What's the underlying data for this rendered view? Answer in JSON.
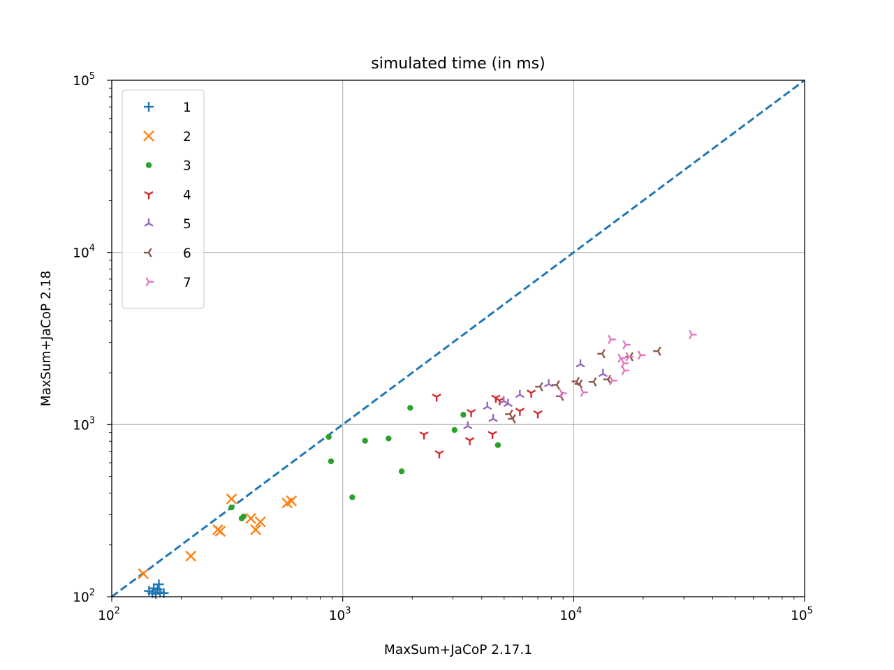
{
  "chart_data": {
    "type": "scatter",
    "title": "simulated time (in ms)",
    "xlabel": "MaxSum+JaCoP 2.17.1",
    "ylabel": "MaxSum+JaCoP 2.18",
    "xscale": "log",
    "yscale": "log",
    "xlim": [
      100,
      100000
    ],
    "ylim": [
      100,
      100000
    ],
    "grid": true,
    "legend_position": "top-left",
    "ticks": [
      {
        "base": "10",
        "exp": "2",
        "value": 100
      },
      {
        "base": "10",
        "exp": "3",
        "value": 1000
      },
      {
        "base": "10",
        "exp": "4",
        "value": 10000
      },
      {
        "base": "10",
        "exp": "5",
        "value": 100000
      }
    ],
    "reference_line": {
      "style": "dashed",
      "color": "#1f77b4",
      "from": [
        100,
        100
      ],
      "to": [
        100000,
        100000
      ]
    },
    "series": [
      {
        "name": "1",
        "marker": "plus",
        "color": "#1f77b4",
        "points": [
          [
            145,
            108
          ],
          [
            150,
            105
          ],
          [
            152,
            112
          ],
          [
            155,
            104
          ],
          [
            158,
            110
          ],
          [
            160,
            118
          ],
          [
            162,
            106
          ],
          [
            168,
            105
          ]
        ]
      },
      {
        "name": "2",
        "marker": "x",
        "color": "#ff7f0e",
        "points": [
          [
            137,
            136
          ],
          [
            220,
            172
          ],
          [
            288,
            245
          ],
          [
            295,
            240
          ],
          [
            330,
            370
          ],
          [
            400,
            285
          ],
          [
            420,
            245
          ],
          [
            440,
            272
          ],
          [
            575,
            350
          ],
          [
            600,
            360
          ]
        ]
      },
      {
        "name": "3",
        "marker": "point",
        "color": "#2ca02c",
        "points": [
          [
            330,
            330
          ],
          [
            365,
            285
          ],
          [
            372,
            292
          ],
          [
            870,
            848
          ],
          [
            890,
            612
          ],
          [
            1100,
            378
          ],
          [
            1250,
            805
          ],
          [
            1580,
            830
          ],
          [
            1800,
            535
          ],
          [
            1960,
            1250
          ],
          [
            3050,
            930
          ],
          [
            3330,
            1140
          ],
          [
            4700,
            760
          ]
        ]
      },
      {
        "name": "4",
        "marker": "tri_down",
        "color": "#d62728",
        "points": [
          [
            2250,
            875
          ],
          [
            2550,
            1450
          ],
          [
            2620,
            680
          ],
          [
            3550,
            810
          ],
          [
            3600,
            1180
          ],
          [
            4450,
            880
          ],
          [
            4600,
            1430
          ],
          [
            4780,
            1380
          ],
          [
            5850,
            1200
          ],
          [
            6550,
            1530
          ],
          [
            7000,
            1160
          ]
        ]
      },
      {
        "name": "5",
        "marker": "tri_up",
        "color": "#9467bd",
        "points": [
          [
            3480,
            980
          ],
          [
            4230,
            1270
          ],
          [
            4480,
            1080
          ],
          [
            4980,
            1370
          ],
          [
            5200,
            1320
          ],
          [
            5850,
            1490
          ],
          [
            7800,
            1720
          ],
          [
            10700,
            2240
          ],
          [
            13400,
            1970
          ]
        ]
      },
      {
        "name": "6",
        "marker": "tri_left",
        "color": "#8c564b",
        "points": [
          [
            5300,
            1150
          ],
          [
            5450,
            1080
          ],
          [
            7150,
            1660
          ],
          [
            8450,
            1700
          ],
          [
            8800,
            1460
          ],
          [
            10300,
            1780
          ],
          [
            10600,
            1720
          ],
          [
            12200,
            1770
          ],
          [
            13300,
            2580
          ],
          [
            14100,
            1830
          ],
          [
            17600,
            2480
          ],
          [
            23200,
            2670
          ]
        ]
      },
      {
        "name": "7",
        "marker": "tri_right",
        "color": "#e377c2",
        "points": [
          [
            8900,
            1520
          ],
          [
            11000,
            1540
          ],
          [
            14500,
            3120
          ],
          [
            14700,
            1800
          ],
          [
            16000,
            2430
          ],
          [
            16500,
            2270
          ],
          [
            16600,
            2060
          ],
          [
            16800,
            2910
          ],
          [
            17300,
            2480
          ],
          [
            19500,
            2530
          ],
          [
            32500,
            3330
          ]
        ]
      }
    ]
  }
}
